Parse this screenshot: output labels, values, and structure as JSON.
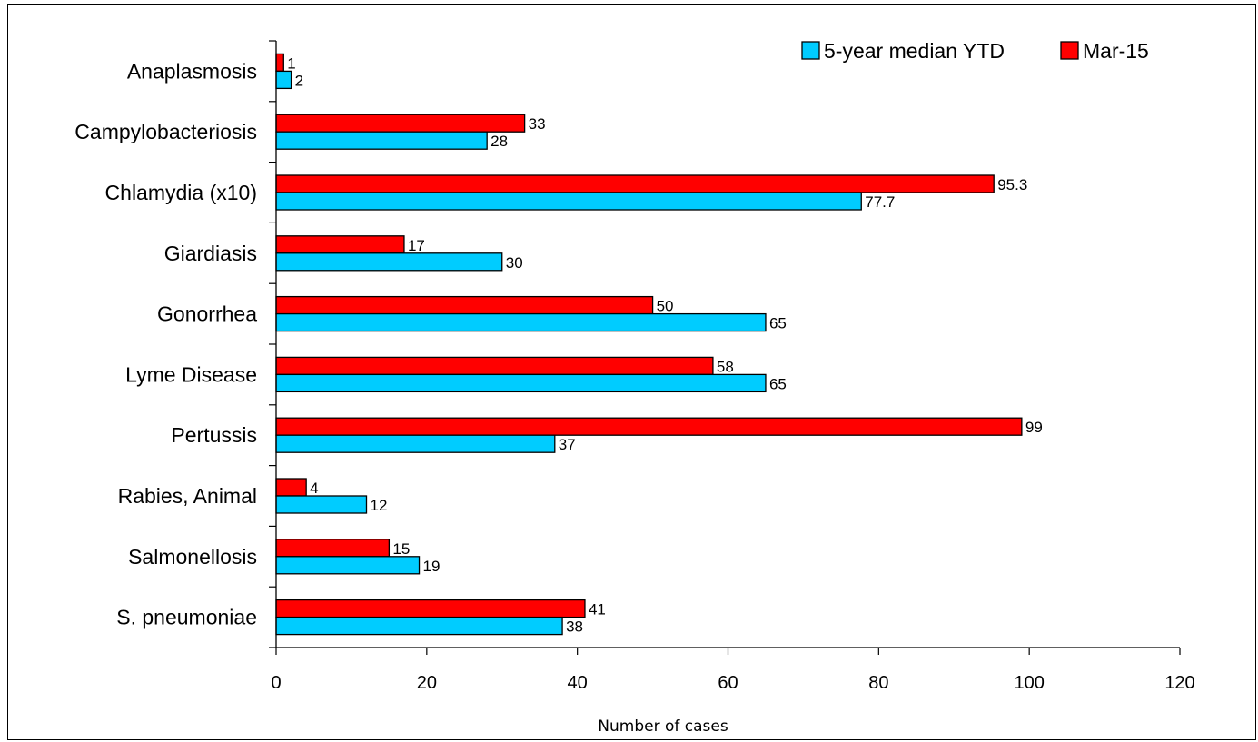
{
  "chart_data": {
    "type": "bar",
    "orientation": "horizontal",
    "categories": [
      "Anaplasmosis",
      "Campylobacteriosis",
      "Chlamydia (x10)",
      "Giardiasis",
      "Gonorrhea",
      "Lyme Disease",
      "Pertussis",
      "Rabies, Animal",
      "Salmonellosis",
      "S. pneumoniae"
    ],
    "series": [
      {
        "name": "Mar-15",
        "color": "#ff0000",
        "values": [
          1,
          33,
          95.3,
          17,
          50,
          58,
          99,
          4,
          15,
          41
        ]
      },
      {
        "name": "5-year median YTD",
        "color": "#00ccff",
        "values": [
          2,
          28,
          77.7,
          30,
          65,
          65,
          37,
          12,
          19,
          38
        ]
      }
    ],
    "legend": {
      "order": [
        "5-year median YTD",
        "Mar-15"
      ],
      "placement": "top-right"
    },
    "xlabel": "Number of cases",
    "ylabel": "",
    "title": "",
    "xlim": [
      0,
      120
    ],
    "xticks": [
      0,
      20,
      40,
      60,
      80,
      100,
      120
    ],
    "grid": false
  }
}
